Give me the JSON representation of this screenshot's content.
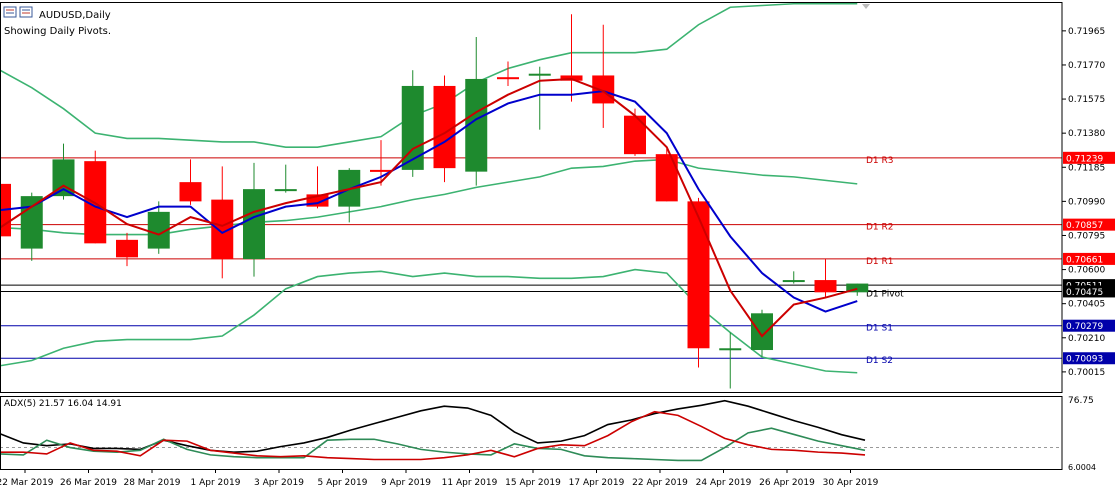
{
  "title": "AUDUSD,Daily",
  "subtitle": "Showing Daily Pivots.",
  "adx_label": "ADX(5) 21.57 16.04 14.91",
  "adx_scale": {
    "top": "76.75",
    "bottom": "6.0004"
  },
  "colors": {
    "bull": "#1e8a2e",
    "bear": "#ff0000",
    "bollinger": "#3cb371",
    "fast_ma": "#cc0000",
    "slow_ma": "#0000cc",
    "pivot_line": "#000000",
    "resistance_line": "#cc0000",
    "support_line": "#0000aa",
    "adx_main": "#000000",
    "adx_plus": "#2e8b57",
    "adx_minus": "#cc0000"
  },
  "chart_data": {
    "type": "candlestick",
    "symbol": "AUDUSD",
    "timeframe": "Daily",
    "ylim": [
      0.699,
      0.7213
    ],
    "y_ticks": [
      0.71965,
      0.7177,
      0.71575,
      0.7138,
      0.71185,
      0.7099,
      0.70795,
      0.706,
      0.70405,
      0.7021,
      0.70015
    ],
    "x_labels": [
      "22 Mar 2019",
      "26 Mar 2019",
      "28 Mar 2019",
      "1 Apr 2019",
      "3 Apr 2019",
      "5 Apr 2019",
      "9 Apr 2019",
      "11 Apr 2019",
      "15 Apr 2019",
      "17 Apr 2019",
      "22 Apr 2019",
      "24 Apr 2019",
      "26 Apr 2019",
      "30 Apr 2019"
    ],
    "candles": [
      {
        "o": 0.7109,
        "h": 0.7116,
        "l": 0.7079,
        "c": 0.7079
      },
      {
        "o": 0.7072,
        "h": 0.7104,
        "l": 0.7065,
        "c": 0.7102
      },
      {
        "o": 0.7102,
        "h": 0.7132,
        "l": 0.71,
        "c": 0.7123
      },
      {
        "o": 0.7122,
        "h": 0.7128,
        "l": 0.7075,
        "c": 0.7075
      },
      {
        "o": 0.7077,
        "h": 0.7081,
        "l": 0.7062,
        "c": 0.7067
      },
      {
        "o": 0.7072,
        "h": 0.7099,
        "l": 0.7069,
        "c": 0.7093
      },
      {
        "o": 0.711,
        "h": 0.7123,
        "l": 0.7097,
        "c": 0.7099
      },
      {
        "o": 0.71,
        "h": 0.7119,
        "l": 0.7055,
        "c": 0.7066
      },
      {
        "o": 0.7066,
        "h": 0.7121,
        "l": 0.7056,
        "c": 0.7106
      },
      {
        "o": 0.7106,
        "h": 0.712,
        "l": 0.7104,
        "c": 0.7106
      },
      {
        "o": 0.7103,
        "h": 0.7119,
        "l": 0.7095,
        "c": 0.7096
      },
      {
        "o": 0.7096,
        "h": 0.7118,
        "l": 0.7087,
        "c": 0.7117
      },
      {
        "o": 0.7117,
        "h": 0.7134,
        "l": 0.7108,
        "c": 0.7116
      },
      {
        "o": 0.7117,
        "h": 0.7174,
        "l": 0.7113,
        "c": 0.7165
      },
      {
        "o": 0.7165,
        "h": 0.7171,
        "l": 0.711,
        "c": 0.7118
      },
      {
        "o": 0.7116,
        "h": 0.7193,
        "l": 0.7108,
        "c": 0.7169
      },
      {
        "o": 0.717,
        "h": 0.7179,
        "l": 0.7165,
        "c": 0.7169
      },
      {
        "o": 0.7172,
        "h": 0.7176,
        "l": 0.714,
        "c": 0.7172
      },
      {
        "o": 0.7171,
        "h": 0.7206,
        "l": 0.7156,
        "c": 0.7168
      },
      {
        "o": 0.7171,
        "h": 0.72,
        "l": 0.7141,
        "c": 0.7155
      },
      {
        "o": 0.7148,
        "h": 0.7152,
        "l": 0.7125,
        "c": 0.7126
      },
      {
        "o": 0.7126,
        "h": 0.7129,
        "l": 0.7099,
        "c": 0.7099
      },
      {
        "o": 0.7099,
        "h": 0.7101,
        "l": 0.7004,
        "c": 0.7015
      },
      {
        "o": 0.7015,
        "h": 0.7024,
        "l": 0.6992,
        "c": 0.7015
      },
      {
        "o": 0.7014,
        "h": 0.7037,
        "l": 0.701,
        "c": 0.7035
      },
      {
        "o": 0.7054,
        "h": 0.7059,
        "l": 0.7052,
        "c": 0.7054
      },
      {
        "o": 0.7054,
        "h": 0.7066,
        "l": 0.7044,
        "c": 0.7047
      },
      {
        "o": 0.7047,
        "h": 0.7052,
        "l": 0.7045,
        "c": 0.7052
      }
    ],
    "fast_ma": [
      0.7084,
      0.7096,
      0.7108,
      0.7098,
      0.7086,
      0.708,
      0.709,
      0.7085,
      0.7093,
      0.7098,
      0.7102,
      0.7106,
      0.711,
      0.7129,
      0.7138,
      0.715,
      0.716,
      0.7168,
      0.7169,
      0.7162,
      0.7148,
      0.713,
      0.709,
      0.7048,
      0.7022,
      0.704,
      0.7044,
      0.7049
    ],
    "slow_ma": [
      0.7094,
      0.7096,
      0.7106,
      0.7096,
      0.709,
      0.7096,
      0.7096,
      0.7081,
      0.709,
      0.7096,
      0.7098,
      0.7106,
      0.7113,
      0.7123,
      0.7133,
      0.7146,
      0.7155,
      0.716,
      0.716,
      0.7162,
      0.7156,
      0.7138,
      0.7106,
      0.7079,
      0.7058,
      0.7044,
      0.7036,
      0.7042
    ],
    "bb_upper": [
      0.7174,
      0.7164,
      0.7152,
      0.7138,
      0.7135,
      0.7135,
      0.7134,
      0.7133,
      0.7133,
      0.713,
      0.713,
      0.7133,
      0.7136,
      0.7148,
      0.7155,
      0.7167,
      0.7175,
      0.718,
      0.7184,
      0.7184,
      0.7184,
      0.7186,
      0.72,
      0.721,
      0.7211,
      0.7212,
      0.7212,
      0.7212
    ],
    "bb_middle": [
      0.7084,
      0.7083,
      0.7081,
      0.708,
      0.708,
      0.708,
      0.7083,
      0.7085,
      0.7087,
      0.7088,
      0.709,
      0.7093,
      0.7096,
      0.71,
      0.7103,
      0.7107,
      0.711,
      0.7113,
      0.7118,
      0.7119,
      0.7122,
      0.7123,
      0.7118,
      0.7116,
      0.7114,
      0.7113,
      0.7111,
      0.7109
    ],
    "bb_lower": [
      0.7005,
      0.7008,
      0.7015,
      0.7019,
      0.702,
      0.702,
      0.702,
      0.7022,
      0.7034,
      0.7049,
      0.7056,
      0.7058,
      0.7059,
      0.7056,
      0.7058,
      0.7056,
      0.7056,
      0.7055,
      0.7055,
      0.7056,
      0.706,
      0.7058,
      0.7039,
      0.7024,
      0.701,
      0.7006,
      0.7002,
      0.7001
    ],
    "pivots": [
      {
        "label": "D1 R3",
        "value": 0.71239,
        "tag": "0.71239"
      },
      {
        "label": "D1 R2",
        "value": 0.70857,
        "tag": "0.70857"
      },
      {
        "label": "D1 R1",
        "value": 0.70661,
        "tag": "0.70661"
      },
      {
        "label": "",
        "value": 0.70511,
        "tag": "0.70511"
      },
      {
        "label": "D1 Pivot",
        "value": 0.70475,
        "tag": "0.70475"
      },
      {
        "label": "D1 S1",
        "value": 0.70279,
        "tag": "0.70279"
      },
      {
        "label": "D1 S2",
        "value": 0.70093,
        "tag": "0.70093"
      }
    ],
    "adx": {
      "ylim": [
        6.0004,
        76.75
      ],
      "main": [
        40,
        30,
        27,
        29,
        24,
        24,
        23,
        33,
        27,
        22,
        20,
        21,
        26,
        30,
        36,
        44,
        51,
        58,
        65,
        70,
        68,
        60,
        42,
        30,
        32,
        38,
        50,
        55,
        62,
        67,
        71,
        76,
        70,
        62,
        54,
        47,
        39,
        33
      ],
      "plus_di": [
        18,
        17,
        33,
        25,
        21,
        20,
        22,
        34,
        23,
        17,
        15,
        14,
        14,
        14,
        33,
        34,
        34,
        29,
        23,
        20,
        18,
        17,
        29,
        24,
        23,
        16,
        14,
        13,
        12,
        11,
        11,
        25,
        41,
        46,
        39,
        32,
        27,
        22
      ],
      "minus_di": [
        20,
        20,
        18,
        30,
        22,
        21,
        16,
        33,
        32,
        22,
        19,
        16,
        15,
        16,
        14,
        13,
        12,
        12,
        12,
        14,
        17,
        22,
        15,
        24,
        28,
        27,
        38,
        53,
        64,
        60,
        48,
        35,
        28,
        23,
        22,
        20,
        19,
        17
      ]
    }
  }
}
